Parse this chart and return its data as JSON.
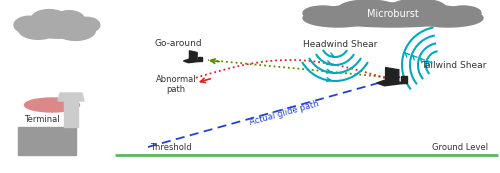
{
  "bg_color": "#ffffff",
  "ground_color": "#5cb85c",
  "cloud_left_color": "#aaaaaa",
  "microburst_color": "#888888",
  "microburst_text": "Microburst",
  "headwind_text": "Headwind Shear",
  "tailwind_text": "Tailwind Shear",
  "goaround_text": "Go-around",
  "terminal_text": "Terminal",
  "abnormal_text": "Abnormal\npath",
  "glide_text": "Actual glide path",
  "threshold_text": "Threshold",
  "ground_level_text": "Ground Level",
  "aircraft_color": "#222222",
  "cyan_color": "#00aabb",
  "arrow_green": "#5a8a00",
  "arrow_red": "#dd2222",
  "glide_color": "#2244cc",
  "terminal_gray": "#999999",
  "terminal_light": "#cccccc",
  "terminal_pink": "#dd8888"
}
